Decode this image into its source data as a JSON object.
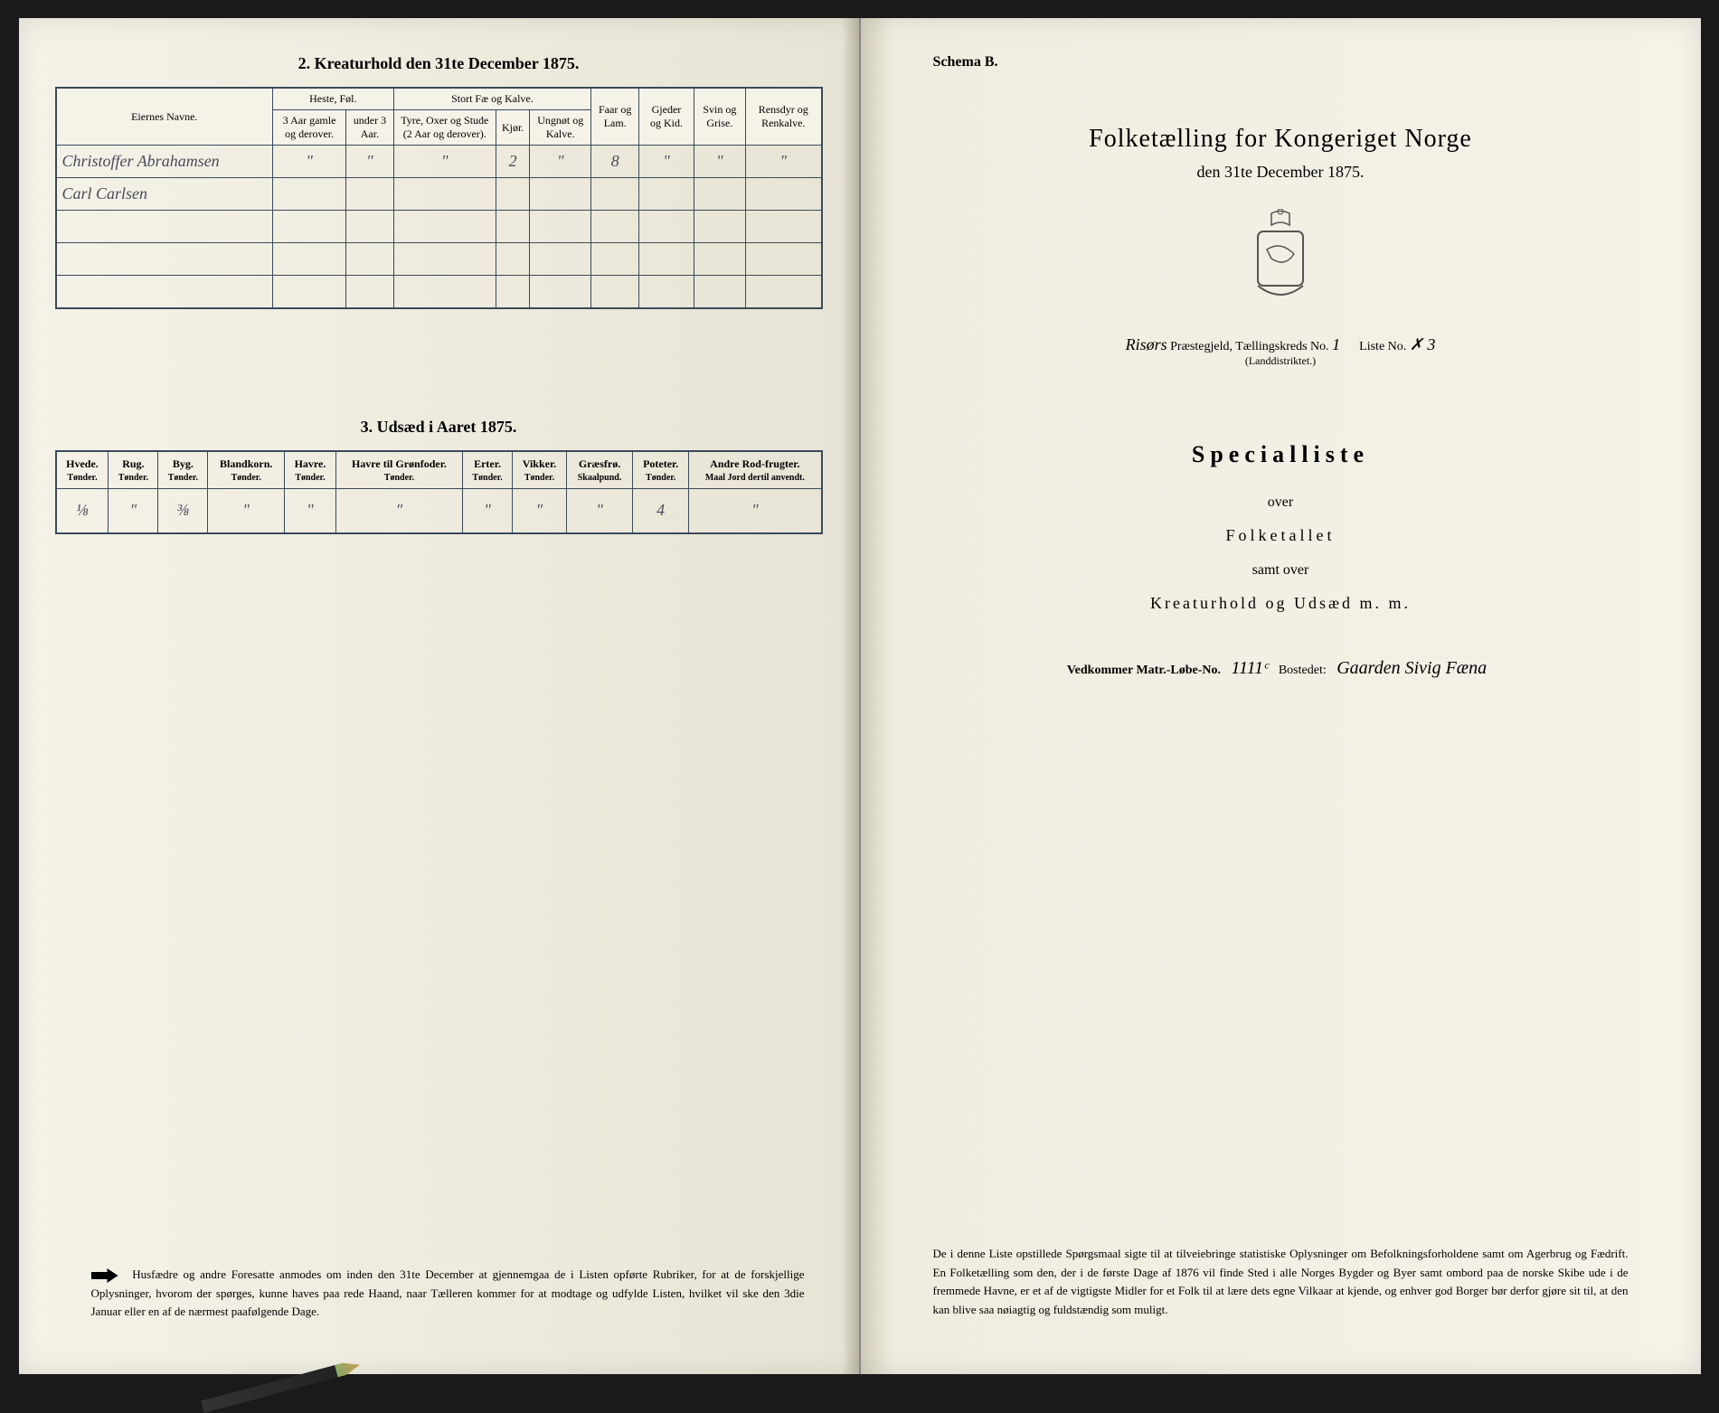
{
  "left": {
    "section2_title": "2.  Kreaturhold den 31te December 1875.",
    "livestock": {
      "header_owner": "Eiernes Navne.",
      "group_heste": "Heste, Føl.",
      "group_stort": "Stort Fæ og Kalve.",
      "col_3aar": "3 Aar gamle og derover.",
      "col_under3": "under 3 Aar.",
      "col_tyre": "Tyre, Oxer og Stude (2 Aar og derover).",
      "col_kjor": "Kjør.",
      "col_ungnot": "Ungnøt og Kalve.",
      "col_faar": "Faar og Lam.",
      "col_gjeder": "Gjeder og Kid.",
      "col_svin": "Svin og Grise.",
      "col_rensdyr": "Rensdyr og Renkalve.",
      "rows": [
        {
          "owner": "Christoffer Abrahamsen",
          "c1": "\"",
          "c2": "\"",
          "c3": "\"",
          "c4": "2",
          "c5": "\"",
          "c6": "8",
          "c7": "\"",
          "c8": "\"",
          "c9": "\""
        },
        {
          "owner": "Carl Carlsen",
          "c1": "",
          "c2": "",
          "c3": "",
          "c4": "",
          "c5": "",
          "c6": "",
          "c7": "",
          "c8": "",
          "c9": ""
        },
        {
          "owner": "",
          "c1": "",
          "c2": "",
          "c3": "",
          "c4": "",
          "c5": "",
          "c6": "",
          "c7": "",
          "c8": "",
          "c9": ""
        },
        {
          "owner": "",
          "c1": "",
          "c2": "",
          "c3": "",
          "c4": "",
          "c5": "",
          "c6": "",
          "c7": "",
          "c8": "",
          "c9": ""
        },
        {
          "owner": "",
          "c1": "",
          "c2": "",
          "c3": "",
          "c4": "",
          "c5": "",
          "c6": "",
          "c7": "",
          "c8": "",
          "c9": ""
        }
      ]
    },
    "section3_title": "3.  Udsæd i Aaret 1875.",
    "seed": {
      "cols": [
        {
          "h": "Hvede.",
          "s": "Tønder."
        },
        {
          "h": "Rug.",
          "s": "Tønder."
        },
        {
          "h": "Byg.",
          "s": "Tønder."
        },
        {
          "h": "Blandkorn.",
          "s": "Tønder."
        },
        {
          "h": "Havre.",
          "s": "Tønder."
        },
        {
          "h": "Havre til Grønfoder.",
          "s": "Tønder."
        },
        {
          "h": "Erter.",
          "s": "Tønder."
        },
        {
          "h": "Vikker.",
          "s": "Tønder."
        },
        {
          "h": "Græsfrø.",
          "s": "Skaalpund."
        },
        {
          "h": "Poteter.",
          "s": "Tønder."
        },
        {
          "h": "Andre Rod-frugter.",
          "s": "Maal Jord dertil anvendt."
        }
      ],
      "row": [
        "⅛",
        "\"",
        "⅜",
        "\"",
        "\"",
        "\"",
        "\"",
        "\"",
        "\"",
        "4",
        "\""
      ]
    },
    "footnote": "Husfædre og andre Foresatte anmodes om inden den 31te December at gjennemgaa de i Listen opførte Rubriker, for at de forskjellige Oplysninger, hvorom der spørges, kunne haves paa rede Haand, naar Tælleren kommer for at modtage og udfylde Listen, hvilket vil ske den 3die Januar eller en af de nærmest paafølgende Dage."
  },
  "right": {
    "schema": "Schema B.",
    "main_title": "Folketælling for Kongeriget Norge",
    "main_subtitle": "den 31te December 1875.",
    "district_prefix": "Risørs",
    "district_label": "Præstegjeld,  Tællingskreds No.",
    "district_no": "1",
    "liste_label": "Liste No.",
    "liste_no": "✗ 3",
    "landdistrikt": "(Landdistriktet.)",
    "special_title": "Specialliste",
    "over": "over",
    "folketallet": "Folketallet",
    "samt_over": "samt over",
    "kreatur": "Kreaturhold og Udsæd m. m.",
    "matr_label": "Vedkommer Matr.-Løbe-No.",
    "matr_no": "1111ᶜ",
    "bosted_label": "Bostedet:",
    "bosted": "Gaarden Sivig Fæna",
    "footnote": "De i denne Liste opstillede Spørgsmaal sigte til at tilveiebringe statistiske Oplysninger om Befolkningsforholdene samt om Agerbrug og Fædrift.  En Folketælling som den, der i de første Dage af 1876 vil finde Sted i alle Norges Bygder og Byer samt ombord paa de norske Skibe ude i de fremmede Havne, er et af de vigtigste Midler for et Folk til at lære dets egne Vilkaar at kjende, og enhver god Borger bør derfor gjøre sit til, at den kan blive saa nøiagtig og fuldstændig som muligt."
  }
}
